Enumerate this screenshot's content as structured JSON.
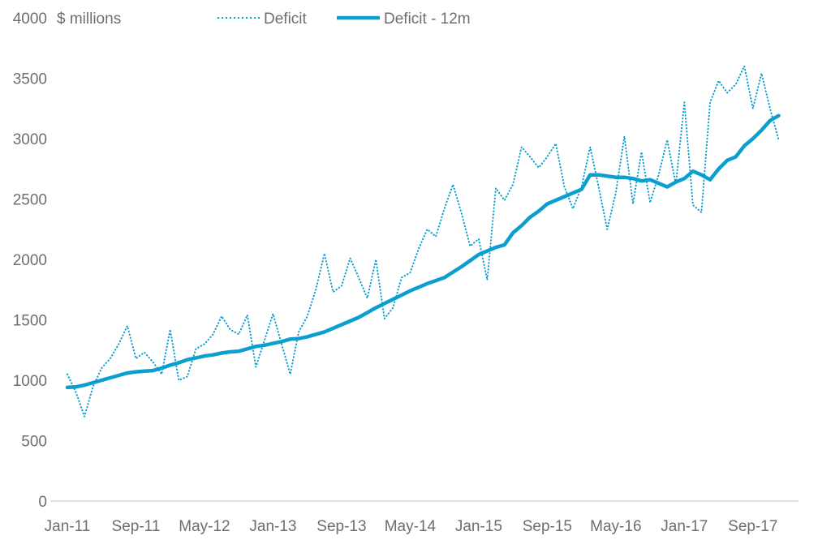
{
  "chart_data": {
    "type": "line",
    "title": "",
    "ylabel": "$ millions",
    "xlabel": "",
    "ylim": [
      0,
      4000
    ],
    "yticks": [
      0,
      500,
      1000,
      1500,
      2000,
      2500,
      3000,
      3500,
      4000
    ],
    "x_start": "Jan-11",
    "x_end": "Dec-17",
    "x_tick_labels": [
      "Jan-11",
      "Sep-11",
      "May-12",
      "Jan-13",
      "Sep-13",
      "May-14",
      "Jan-15",
      "Sep-15",
      "May-16",
      "Jan-17",
      "Sep-17"
    ],
    "x_tick_every_months": 8,
    "grid": false,
    "legend_placement": "top",
    "colors": {
      "line": "#0a9fcf",
      "text": "#6d6e71",
      "axis": "#d9d9d9"
    },
    "series": [
      {
        "name": "Deficit",
        "style": "dotted",
        "values": [
          1050,
          900,
          700,
          950,
          1100,
          1180,
          1300,
          1450,
          1180,
          1230,
          1150,
          1050,
          1420,
          1000,
          1030,
          1260,
          1300,
          1380,
          1530,
          1420,
          1380,
          1540,
          1110,
          1330,
          1550,
          1300,
          1050,
          1400,
          1530,
          1750,
          2050,
          1730,
          1780,
          2010,
          1850,
          1680,
          2000,
          1510,
          1600,
          1850,
          1890,
          2090,
          2250,
          2190,
          2420,
          2620,
          2380,
          2110,
          2170,
          1830,
          2590,
          2490,
          2620,
          2930,
          2850,
          2760,
          2850,
          2960,
          2600,
          2420,
          2600,
          2930,
          2600,
          2250,
          2550,
          3020,
          2460,
          2890,
          2470,
          2700,
          2990,
          2620,
          3300,
          2450,
          2390,
          3300,
          3480,
          3380,
          3450,
          3600,
          3250,
          3540,
          3250,
          2990
        ]
      },
      {
        "name": "Deficit - 12m",
        "style": "solid",
        "values": [
          940,
          945,
          960,
          980,
          1000,
          1020,
          1040,
          1060,
          1070,
          1075,
          1080,
          1100,
          1125,
          1145,
          1170,
          1185,
          1200,
          1210,
          1225,
          1235,
          1240,
          1260,
          1280,
          1290,
          1305,
          1320,
          1340,
          1345,
          1360,
          1380,
          1400,
          1430,
          1460,
          1490,
          1520,
          1560,
          1600,
          1635,
          1670,
          1705,
          1740,
          1770,
          1800,
          1825,
          1850,
          1895,
          1940,
          1990,
          2040,
          2070,
          2100,
          2120,
          2220,
          2280,
          2350,
          2400,
          2460,
          2490,
          2520,
          2550,
          2580,
          2700,
          2700,
          2690,
          2680,
          2680,
          2670,
          2650,
          2660,
          2630,
          2600,
          2640,
          2670,
          2730,
          2700,
          2660,
          2750,
          2820,
          2850,
          2940,
          3000,
          3070,
          3150,
          3190
        ]
      }
    ]
  }
}
